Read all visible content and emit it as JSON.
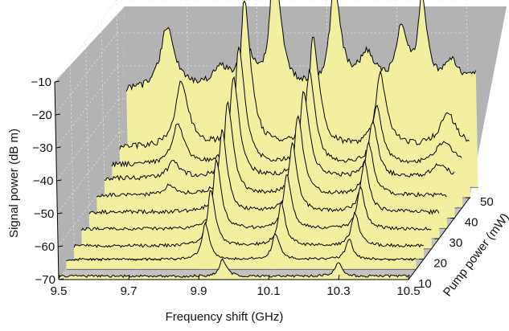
{
  "chart_data": {
    "type": "area",
    "projection": "3d-waterfall",
    "xlabel": "Frequency shift (GHz)",
    "ylabel": "Signal power (dB m)",
    "zlabel": "Pump power (mW)",
    "x_ticks": [
      "9.5",
      "9.7",
      "9.9",
      "10.1",
      "10.3",
      "10.5"
    ],
    "y_ticks": [
      "−70",
      "−60",
      "−50",
      "−40",
      "−30",
      "−20",
      "−10"
    ],
    "z_ticks": [
      "10",
      "20",
      "30",
      "40",
      "50"
    ],
    "xlim": [
      9.5,
      10.5
    ],
    "ylim": [
      -70,
      -10
    ],
    "zlim": [
      10,
      50
    ],
    "grid": true,
    "colors": {
      "fill": "#f2f0a0",
      "line": "#000000",
      "back_wall": "#b3b3b3",
      "floor": "#c2c2c2",
      "grid": "#e4e4e4"
    },
    "series": [
      {
        "pump_power_mW": 10,
        "baseline_dBm": -69,
        "noise_dBm": 0.4,
        "peaks": [
          {
            "x": 9.97,
            "h": 5,
            "w": 0.012
          },
          {
            "x": 10.3,
            "h": 4,
            "w": 0.012
          }
        ]
      },
      {
        "pump_power_mW": 15,
        "baseline_dBm": -67,
        "noise_dBm": 0.4,
        "peaks": [
          {
            "x": 9.9,
            "h": 11,
            "w": 0.012
          },
          {
            "x": 10.1,
            "h": 8,
            "w": 0.012
          },
          {
            "x": 10.31,
            "h": 6,
            "w": 0.012
          }
        ]
      },
      {
        "pump_power_mW": 20,
        "baseline_dBm": -66,
        "noise_dBm": 0.5,
        "peaks": [
          {
            "x": 9.895,
            "h": 17,
            "w": 0.013
          },
          {
            "x": 10.095,
            "h": 13,
            "w": 0.013
          },
          {
            "x": 10.305,
            "h": 10,
            "w": 0.013
          }
        ]
      },
      {
        "pump_power_mW": 25,
        "baseline_dBm": -64,
        "noise_dBm": 0.5,
        "peaks": [
          {
            "x": 9.89,
            "h": 21,
            "w": 0.013
          },
          {
            "x": 10.09,
            "h": 17,
            "w": 0.013
          },
          {
            "x": 10.3,
            "h": 13,
            "w": 0.013
          }
        ]
      },
      {
        "pump_power_mW": 30,
        "baseline_dBm": -62,
        "noise_dBm": 0.6,
        "peaks": [
          {
            "x": 9.885,
            "h": 25,
            "w": 0.014
          },
          {
            "x": 10.085,
            "h": 21,
            "w": 0.014
          },
          {
            "x": 10.29,
            "h": 15,
            "w": 0.014
          }
        ]
      },
      {
        "pump_power_mW": 35,
        "baseline_dBm": -60,
        "noise_dBm": 0.6,
        "peaks": [
          {
            "x": 9.71,
            "h": 3,
            "w": 0.02
          },
          {
            "x": 9.88,
            "h": 28,
            "w": 0.015
          },
          {
            "x": 10.08,
            "h": 24,
            "w": 0.015
          },
          {
            "x": 10.28,
            "h": 16,
            "w": 0.015
          }
        ]
      },
      {
        "pump_power_mW": 40,
        "baseline_dBm": -58,
        "noise_dBm": 0.7,
        "peaks": [
          {
            "x": 9.7,
            "h": 5,
            "w": 0.02
          },
          {
            "x": 9.875,
            "h": 31,
            "w": 0.016
          },
          {
            "x": 10.075,
            "h": 26,
            "w": 0.016
          },
          {
            "x": 10.27,
            "h": 17,
            "w": 0.016
          },
          {
            "x": 10.46,
            "h": 4,
            "w": 0.03
          }
        ]
      },
      {
        "pump_power_mW": 45,
        "baseline_dBm": -57,
        "noise_dBm": 0.7,
        "peaks": [
          {
            "x": 9.69,
            "h": 12,
            "w": 0.02
          },
          {
            "x": 9.87,
            "h": 36,
            "w": 0.016
          },
          {
            "x": 10.07,
            "h": 28,
            "w": 0.016
          },
          {
            "x": 10.26,
            "h": 18,
            "w": 0.016
          },
          {
            "x": 10.45,
            "h": 7,
            "w": 0.03
          }
        ]
      },
      {
        "pump_power_mW": 50,
        "baseline_dBm": -55,
        "noise_dBm": 0.9,
        "peaks": [
          {
            "x": 9.68,
            "h": 20,
            "w": 0.022
          },
          {
            "x": 9.865,
            "h": 45,
            "w": 0.017
          },
          {
            "x": 10.06,
            "h": 33,
            "w": 0.017
          },
          {
            "x": 10.25,
            "h": 22,
            "w": 0.018
          },
          {
            "x": 10.44,
            "h": 10,
            "w": 0.03
          }
        ]
      },
      {
        "pump_power_mW": 55,
        "baseline_dBm": -41,
        "noise_dBm": 1.0,
        "peaks": [
          {
            "x": 9.62,
            "h": 19,
            "w": 0.025
          },
          {
            "x": 9.77,
            "h": 6,
            "w": 0.03
          },
          {
            "x": 9.845,
            "h": 11,
            "w": 0.025
          },
          {
            "x": 9.93,
            "h": 40,
            "w": 0.017
          },
          {
            "x": 10.1,
            "h": 31,
            "w": 0.018
          },
          {
            "x": 10.19,
            "h": 10,
            "w": 0.03
          },
          {
            "x": 10.29,
            "h": 18,
            "w": 0.02
          },
          {
            "x": 10.35,
            "h": 26,
            "w": 0.015
          },
          {
            "x": 10.43,
            "h": 8,
            "w": 0.03
          },
          {
            "x": 10.52,
            "h": 10,
            "w": 0.02
          }
        ]
      }
    ]
  }
}
